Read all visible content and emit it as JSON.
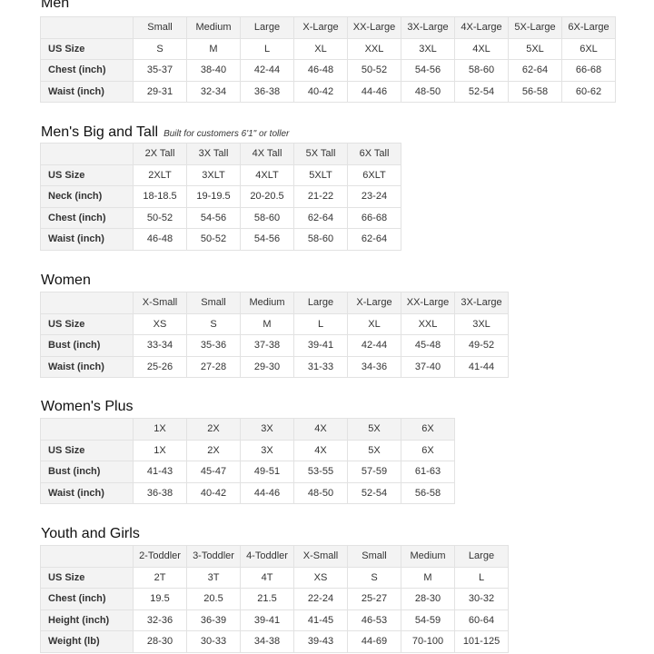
{
  "sections": [
    {
      "title": "Men",
      "note": "",
      "columns": [
        "Small",
        "Medium",
        "Large",
        "X-Large",
        "XX-Large",
        "3X-Large",
        "4X-Large",
        "5X-Large",
        "6X-Large"
      ],
      "rows": [
        {
          "label": "US Size",
          "values": [
            "S",
            "M",
            "L",
            "XL",
            "XXL",
            "3XL",
            "4XL",
            "5XL",
            "6XL"
          ]
        },
        {
          "label": "Chest (inch)",
          "values": [
            "35-37",
            "38-40",
            "42-44",
            "46-48",
            "50-52",
            "54-56",
            "58-60",
            "62-64",
            "66-68"
          ]
        },
        {
          "label": "Waist (inch)",
          "values": [
            "29-31",
            "32-34",
            "36-38",
            "40-42",
            "44-46",
            "48-50",
            "52-54",
            "56-58",
            "60-62"
          ]
        }
      ]
    },
    {
      "title": "Men's Big and Tall",
      "note": "Built for customers 6'1\" or toller",
      "columns": [
        "2X Tall",
        "3X Tall",
        "4X Tall",
        "5X Tall",
        "6X Tall"
      ],
      "rows": [
        {
          "label": "US Size",
          "values": [
            "2XLT",
            "3XLT",
            "4XLT",
            "5XLT",
            "6XLT"
          ]
        },
        {
          "label": "Neck (inch)",
          "values": [
            "18-18.5",
            "19-19.5",
            "20-20.5",
            "21-22",
            "23-24"
          ]
        },
        {
          "label": "Chest (inch)",
          "values": [
            "50-52",
            "54-56",
            "58-60",
            "62-64",
            "66-68"
          ]
        },
        {
          "label": "Waist (inch)",
          "values": [
            "46-48",
            "50-52",
            "54-56",
            "58-60",
            "62-64"
          ]
        }
      ]
    },
    {
      "title": "Women",
      "note": "",
      "columns": [
        "X-Small",
        "Small",
        "Medium",
        "Large",
        "X-Large",
        "XX-Large",
        "3X-Large"
      ],
      "rows": [
        {
          "label": "US Size",
          "values": [
            "XS",
            "S",
            "M",
            "L",
            "XL",
            "XXL",
            "3XL"
          ]
        },
        {
          "label": "Bust (inch)",
          "values": [
            "33-34",
            "35-36",
            "37-38",
            "39-41",
            "42-44",
            "45-48",
            "49-52"
          ]
        },
        {
          "label": "Waist (inch)",
          "values": [
            "25-26",
            "27-28",
            "29-30",
            "31-33",
            "34-36",
            "37-40",
            "41-44"
          ]
        }
      ]
    },
    {
      "title": "Women's  Plus",
      "note": "",
      "columns": [
        "1X",
        "2X",
        "3X",
        "4X",
        "5X",
        "6X"
      ],
      "rows": [
        {
          "label": "US Size",
          "values": [
            "1X",
            "2X",
            "3X",
            "4X",
            "5X",
            "6X"
          ]
        },
        {
          "label": "Bust (inch)",
          "values": [
            "41-43",
            "45-47",
            "49-51",
            "53-55",
            "57-59",
            "61-63"
          ]
        },
        {
          "label": "Waist (inch)",
          "values": [
            "36-38",
            "40-42",
            "44-46",
            "48-50",
            "52-54",
            "56-58"
          ]
        }
      ]
    },
    {
      "title": "Youth and Girls",
      "note": "",
      "columns": [
        "2-Toddler",
        "3-Toddler",
        "4-Toddler",
        "X-Small",
        "Small",
        "Medium",
        "Large"
      ],
      "rows": [
        {
          "label": "US Size",
          "values": [
            "2T",
            "3T",
            "4T",
            "XS",
            "S",
            "M",
            "L"
          ]
        },
        {
          "label": "Chest (inch)",
          "values": [
            "19.5",
            "20.5",
            "21.5",
            "22-24",
            "25-27",
            "28-30",
            "30-32"
          ]
        },
        {
          "label": "Height (inch)",
          "values": [
            "32-36",
            "36-39",
            "39-41",
            "41-45",
            "46-53",
            "54-59",
            "60-64"
          ]
        },
        {
          "label": "Weight (lb)",
          "values": [
            "28-30",
            "30-33",
            "34-38",
            "39-43",
            "44-69",
            "70-100",
            "101-125"
          ]
        }
      ]
    }
  ]
}
